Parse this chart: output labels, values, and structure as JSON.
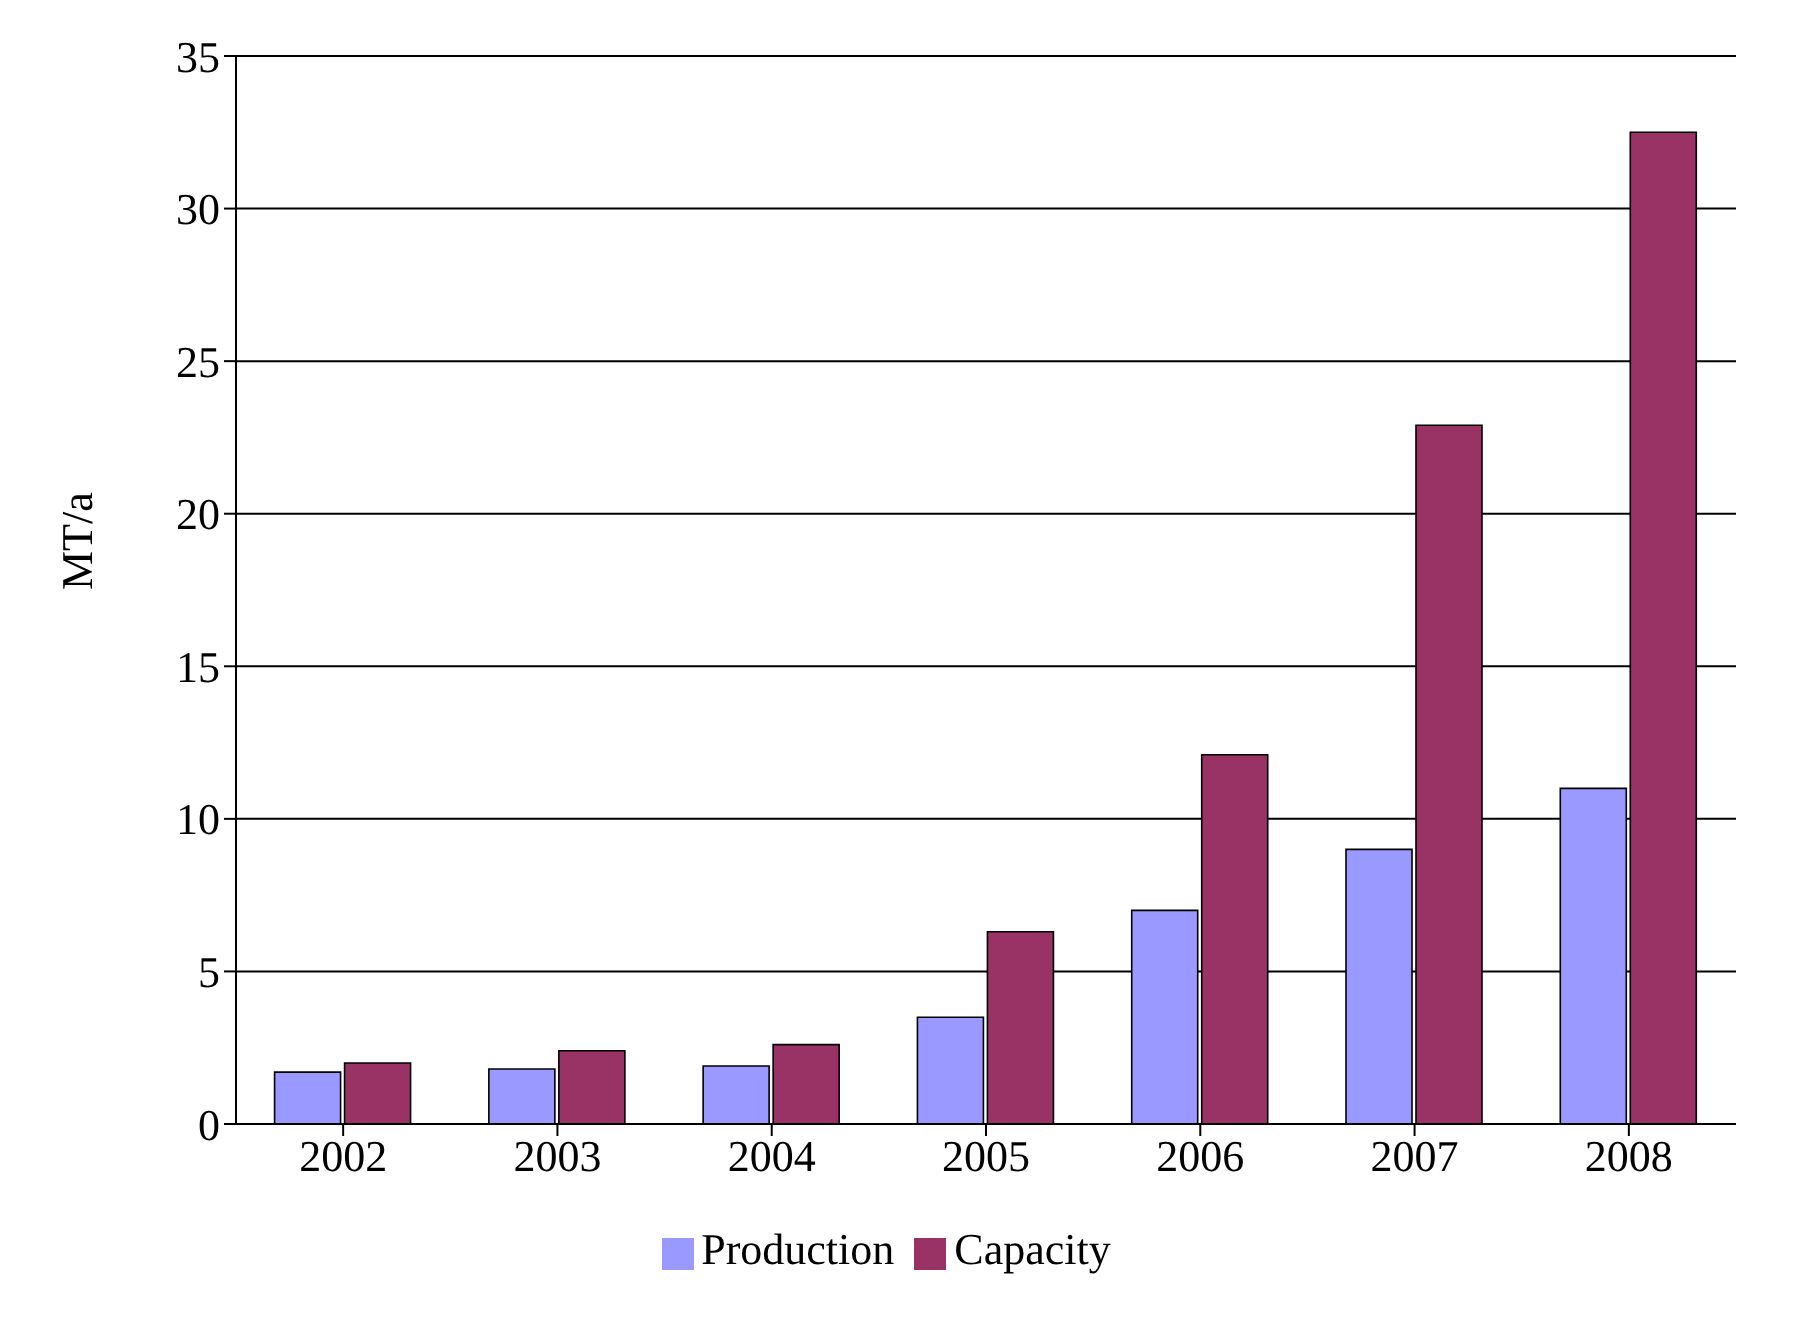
{
  "chart_data": {
    "type": "bar",
    "ylabel": "MT/a",
    "categories": [
      "2002",
      "2003",
      "2004",
      "2005",
      "2006",
      "2007",
      "2008"
    ],
    "series": [
      {
        "name": "Production",
        "color": "#9999ff",
        "values": [
          1.7,
          1.8,
          1.9,
          3.5,
          7.0,
          9.0,
          11.0
        ]
      },
      {
        "name": "Capacity",
        "color": "#993366",
        "values": [
          2.0,
          2.4,
          2.6,
          6.3,
          12.1,
          22.9,
          32.5
        ]
      }
    ],
    "ylim": [
      0,
      35
    ],
    "yticks": [
      0,
      5,
      10,
      15,
      20,
      25,
      30,
      35
    ],
    "grid": "y",
    "legend": "bottom"
  }
}
